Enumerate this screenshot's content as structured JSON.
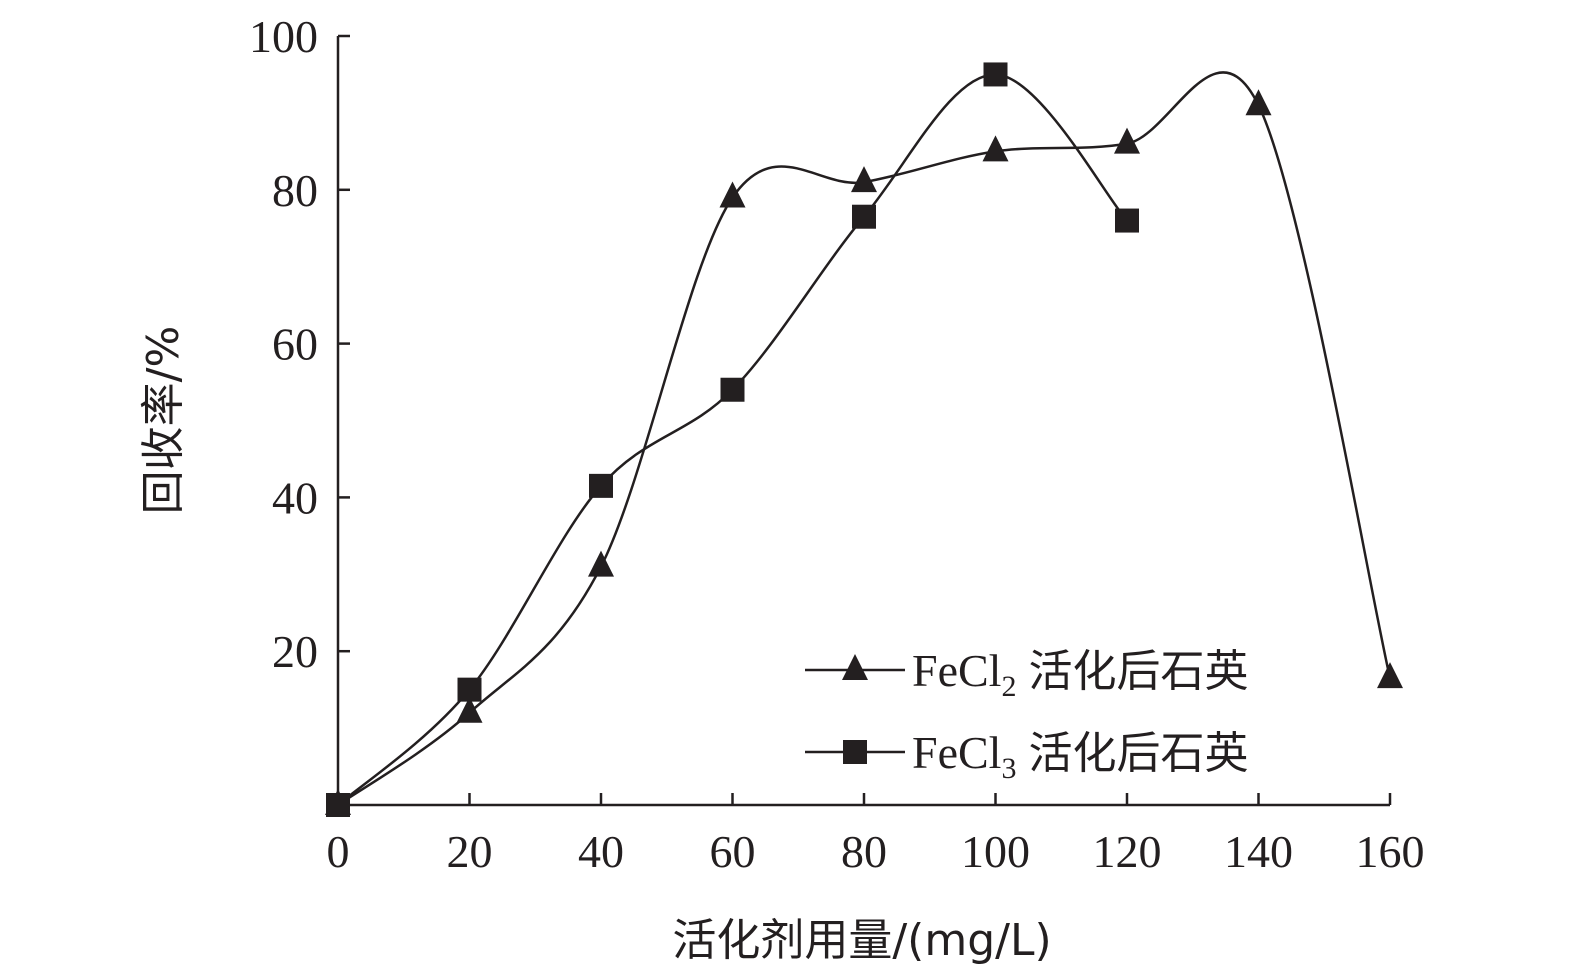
{
  "chart_data": {
    "type": "line",
    "title": "",
    "xlabel": "活化剂用量/(mg/L)",
    "ylabel": "回收率/%",
    "xlim": [
      0,
      160
    ],
    "ylim": [
      0,
      100
    ],
    "x_ticks": [
      0,
      20,
      40,
      60,
      80,
      100,
      120,
      140,
      160
    ],
    "y_ticks": [
      20,
      40,
      60,
      80,
      100
    ],
    "grid": false,
    "smooth": true,
    "legend_position": "bottom-right",
    "series": [
      {
        "name": "FeCl2 活化后石英",
        "legend_prefix": "FeCl",
        "legend_subscript": "2",
        "legend_suffix": "活化后石英",
        "marker": "triangle",
        "x": [
          0,
          20,
          40,
          60,
          80,
          100,
          120,
          140,
          160
        ],
        "y": [
          0,
          12,
          31,
          79,
          81,
          85,
          86,
          91,
          16.5
        ]
      },
      {
        "name": "FeCl3 活化后石英",
        "legend_prefix": "FeCl",
        "legend_subscript": "3",
        "legend_suffix": "活化后石英",
        "marker": "square",
        "x": [
          0,
          20,
          40,
          60,
          80,
          100,
          120
        ],
        "y": [
          0,
          15,
          41.5,
          54,
          76.5,
          95,
          76
        ]
      }
    ],
    "colors": {
      "ink": "#231f20",
      "background": "#ffffff"
    }
  }
}
